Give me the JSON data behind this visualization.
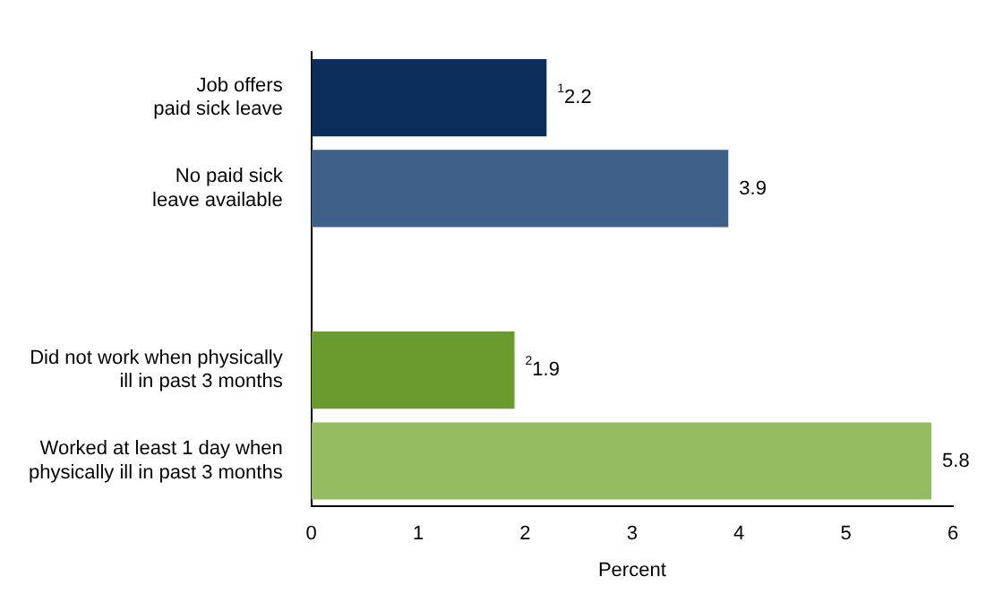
{
  "chart_data": {
    "type": "bar",
    "orientation": "horizontal",
    "xlabel": "Percent",
    "categories": [
      "Job offers paid sick leave",
      "No paid sick leave available",
      null,
      "Did not work when physically ill in past 3 months",
      "Worked at least 1 day when physically ill in past 3 months"
    ],
    "values": [
      2.2,
      3.9,
      null,
      1.9,
      5.8
    ],
    "colors": [
      "#0b2d5b",
      "#3e5f87",
      "#ffffff",
      "#6b9b2f",
      "#93bb60"
    ],
    "value_labels": [
      "$^{1}$2.2",
      "3.9",
      null,
      "$^{2}$1.9",
      "5.8"
    ],
    "xlim": [
      0,
      6
    ],
    "xticks": [
      0,
      1,
      2,
      3,
      4,
      5,
      6
    ],
    "grid": false,
    "legend": false
  }
}
